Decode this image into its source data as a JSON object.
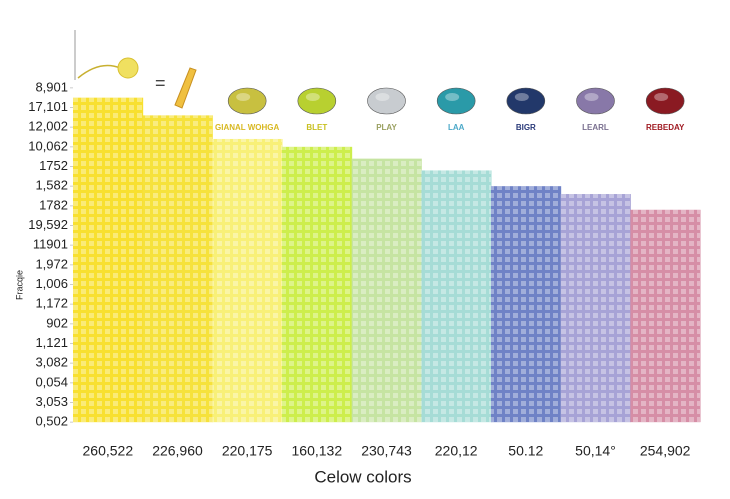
{
  "chart_data": {
    "type": "bar",
    "x_label": "Celow colors",
    "y_label": "Fracqie",
    "categories": [
      "260,522",
      "226,960",
      "220,175",
      "160,132",
      "230,743",
      "220,12",
      "50.12",
      "50,14°",
      "254,902"
    ],
    "values": [
      16.5,
      15.6,
      14.4,
      14.0,
      13.4,
      12.8,
      12.0,
      11.6,
      10.8
    ],
    "colors": [
      "#f8e030",
      "#f6e23c",
      "#f8f078",
      "#cdee4c",
      "#c6e4a2",
      "#a6dcd6",
      "#6f82c6",
      "#a7a3d6",
      "#d68ea6"
    ],
    "ylim": [
      -0.5,
      17.5
    ],
    "yticks": [
      {
        "value": 17,
        "label": "8,901"
      },
      {
        "value": 16,
        "label": "17,101"
      },
      {
        "value": 15,
        "label": "12,002"
      },
      {
        "value": 14,
        "label": "10,062"
      },
      {
        "value": 13,
        "label": "1752"
      },
      {
        "value": 12,
        "label": "1,582"
      },
      {
        "value": 11,
        "label": "1782"
      },
      {
        "value": 10,
        "label": "19,592"
      },
      {
        "value": 9,
        "label": "11901"
      },
      {
        "value": 8,
        "label": "1,972"
      },
      {
        "value": 7,
        "label": "1,006"
      },
      {
        "value": 6,
        "label": "1,172"
      },
      {
        "value": 5,
        "label": "902"
      },
      {
        "value": 4,
        "label": "1,121"
      },
      {
        "value": 3,
        "label": "3,082"
      },
      {
        "value": 2,
        "label": "0,054"
      },
      {
        "value": 1,
        "label": "3,053"
      },
      {
        "value": 0,
        "label": "0,502"
      }
    ],
    "legend": [
      {
        "label": "GIANAL WOHGA",
        "color": "#c8c040",
        "text_color": "#d8b820"
      },
      {
        "label": "BLET",
        "color": "#b8d030",
        "text_color": "#c8c020"
      },
      {
        "label": "PLAY",
        "color": "#c8ccd0",
        "text_color": "#9aa060"
      },
      {
        "label": "LAA",
        "color": "#2a9aa8",
        "text_color": "#4aa8c8"
      },
      {
        "label": "BIGR",
        "color": "#22386a",
        "text_color": "#2a3a7a"
      },
      {
        "label": "LEARL",
        "color": "#8878a8",
        "text_color": "#7a7090"
      },
      {
        "label": "REBEDAY",
        "color": "#8a1a22",
        "text_color": "#a01a22"
      }
    ]
  }
}
